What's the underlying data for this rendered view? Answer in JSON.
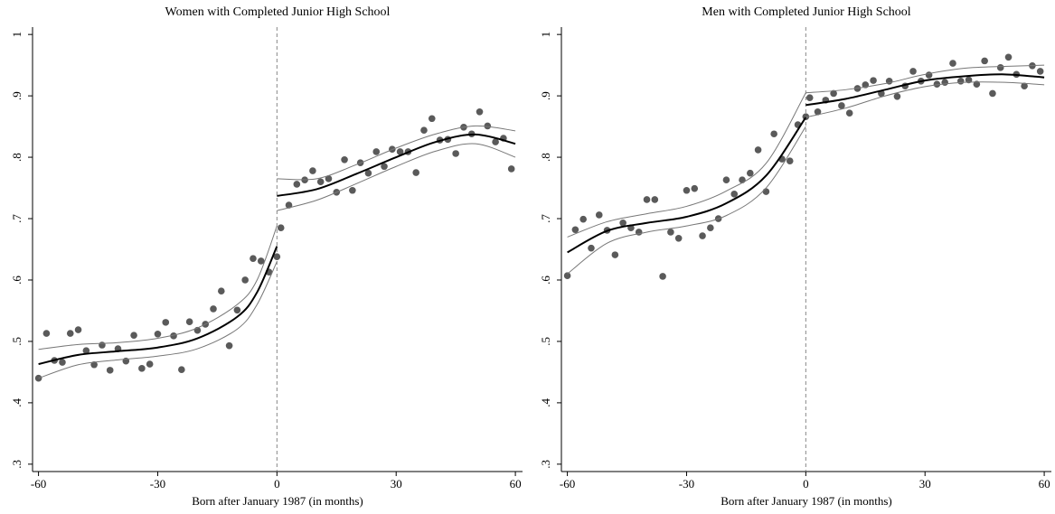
{
  "chart_data": [
    {
      "type": "scatter",
      "title": "Women with Completed Junior High School",
      "xlabel": "Born after January 1987 (in months)",
      "xlim": [
        -61.5,
        61.8
      ],
      "ylim": [
        0.288,
        1.012
      ],
      "xticks": [
        -60,
        -30,
        0,
        30,
        60
      ],
      "yticks": [
        {
          "value": 0.3,
          "label": ".3"
        },
        {
          "value": 0.4,
          "label": ".4"
        },
        {
          "value": 0.5,
          "label": ".5"
        },
        {
          "value": 0.6,
          "label": ".6"
        },
        {
          "value": 0.7,
          "label": ".7"
        },
        {
          "value": 0.8,
          "label": ".8"
        },
        {
          "value": 0.9,
          "label": ".9"
        },
        {
          "value": 1,
          "label": "1"
        }
      ],
      "cutoff": 0,
      "series": [
        {
          "kind": "points",
          "color": "#5a5a5a",
          "x": [
            -60,
            -58,
            -56,
            -54,
            -52,
            -50,
            -48,
            -46,
            -44,
            -42,
            -40,
            -38,
            -36,
            -34,
            -32,
            -30,
            -28,
            -26,
            -24,
            -22,
            -20,
            -18,
            -16,
            -14,
            -12,
            -10,
            -8,
            -6,
            -4,
            -2,
            0
          ],
          "values": [
            0.44,
            0.513,
            0.469,
            0.466,
            0.513,
            0.519,
            0.485,
            0.462,
            0.494,
            0.453,
            0.488,
            0.468,
            0.51,
            0.456,
            0.463,
            0.512,
            0.531,
            0.509,
            0.454,
            0.532,
            0.518,
            0.528,
            0.553,
            0.582,
            0.493,
            0.551,
            0.6,
            0.635,
            0.631,
            0.613,
            0.638
          ]
        },
        {
          "kind": "points",
          "color": "#5a5a5a",
          "x": [
            1,
            3,
            5,
            7,
            9,
            11,
            13,
            15,
            17,
            19,
            21,
            23,
            25,
            27,
            29,
            31,
            33,
            35,
            37,
            39,
            41,
            43,
            45,
            47,
            49,
            51,
            53,
            55,
            57,
            59
          ],
          "values": [
            0.685,
            0.722,
            0.756,
            0.763,
            0.778,
            0.76,
            0.765,
            0.743,
            0.796,
            0.746,
            0.791,
            0.774,
            0.809,
            0.785,
            0.813,
            0.809,
            0.809,
            0.775,
            0.844,
            0.863,
            0.828,
            0.829,
            0.806,
            0.849,
            0.838,
            0.874,
            0.851,
            0.825,
            0.831,
            0.781
          ]
        },
        {
          "kind": "line",
          "color": "#000000",
          "width": 2,
          "x": [
            -60,
            -50,
            -40,
            -30,
            -20,
            -10,
            -5,
            0
          ],
          "values": [
            0.463,
            0.478,
            0.484,
            0.49,
            0.505,
            0.54,
            0.58,
            0.655
          ]
        },
        {
          "kind": "line",
          "color": "#777777",
          "width": 1,
          "x": [
            -60,
            -50,
            -40,
            -30,
            -20,
            -10,
            -5,
            0
          ],
          "values": [
            0.487,
            0.495,
            0.498,
            0.505,
            0.522,
            0.56,
            0.6,
            0.688
          ]
        },
        {
          "kind": "line",
          "color": "#777777",
          "width": 1,
          "x": [
            -60,
            -50,
            -40,
            -30,
            -20,
            -10,
            -5,
            0
          ],
          "values": [
            0.44,
            0.462,
            0.47,
            0.476,
            0.488,
            0.52,
            0.56,
            0.63
          ]
        },
        {
          "kind": "line",
          "color": "#000000",
          "width": 2,
          "x": [
            0,
            10,
            20,
            30,
            40,
            50,
            60
          ],
          "values": [
            0.737,
            0.748,
            0.773,
            0.8,
            0.825,
            0.837,
            0.822
          ]
        },
        {
          "kind": "line",
          "color": "#777777",
          "width": 1,
          "x": [
            0,
            10,
            20,
            30,
            40,
            50,
            60
          ],
          "values": [
            0.765,
            0.765,
            0.788,
            0.815,
            0.838,
            0.851,
            0.843
          ]
        },
        {
          "kind": "line",
          "color": "#777777",
          "width": 1,
          "x": [
            0,
            10,
            20,
            30,
            40,
            50,
            60
          ],
          "values": [
            0.713,
            0.73,
            0.757,
            0.785,
            0.81,
            0.822,
            0.8
          ]
        }
      ]
    },
    {
      "type": "scatter",
      "title": "Men with Completed Junior High School",
      "xlabel": "Born after January 1987 (in months)",
      "xlim": [
        -61.5,
        61.8
      ],
      "ylim": [
        0.288,
        1.012
      ],
      "xticks": [
        -60,
        -30,
        0,
        30,
        60
      ],
      "yticks": [
        {
          "value": 0.3,
          "label": ".3"
        },
        {
          "value": 0.4,
          "label": ".4"
        },
        {
          "value": 0.5,
          "label": ".5"
        },
        {
          "value": 0.6,
          "label": ".6"
        },
        {
          "value": 0.7,
          "label": ".7"
        },
        {
          "value": 0.8,
          "label": ".8"
        },
        {
          "value": 0.9,
          "label": ".9"
        },
        {
          "value": 1,
          "label": "1"
        }
      ],
      "cutoff": 0,
      "series": [
        {
          "kind": "points",
          "color": "#5a5a5a",
          "x": [
            -60,
            -58,
            -56,
            -54,
            -52,
            -50,
            -48,
            -46,
            -44,
            -42,
            -40,
            -38,
            -36,
            -34,
            -32,
            -30,
            -28,
            -26,
            -24,
            -22,
            -20,
            -18,
            -16,
            -14,
            -12,
            -10,
            -8,
            -6,
            -4,
            -2,
            0
          ],
          "values": [
            0.607,
            0.682,
            0.699,
            0.652,
            0.706,
            0.681,
            0.641,
            0.693,
            0.685,
            0.678,
            0.731,
            0.731,
            0.606,
            0.678,
            0.668,
            0.746,
            0.749,
            0.672,
            0.685,
            0.7,
            0.763,
            0.74,
            0.763,
            0.774,
            0.812,
            0.744,
            0.838,
            0.797,
            0.794,
            0.853,
            0.866
          ]
        },
        {
          "kind": "points",
          "color": "#5a5a5a",
          "x": [
            1,
            3,
            5,
            7,
            9,
            11,
            13,
            15,
            17,
            19,
            21,
            23,
            25,
            27,
            29,
            31,
            33,
            35,
            37,
            39,
            41,
            43,
            45,
            47,
            49,
            51,
            53,
            55,
            57,
            59
          ],
          "values": [
            0.897,
            0.874,
            0.893,
            0.904,
            0.884,
            0.872,
            0.912,
            0.918,
            0.925,
            0.904,
            0.924,
            0.899,
            0.916,
            0.94,
            0.924,
            0.934,
            0.919,
            0.922,
            0.953,
            0.924,
            0.926,
            0.919,
            0.957,
            0.904,
            0.946,
            0.963,
            0.935,
            0.916,
            0.949,
            0.94
          ]
        },
        {
          "kind": "line",
          "color": "#000000",
          "width": 2,
          "x": [
            -60,
            -50,
            -40,
            -30,
            -20,
            -10,
            0
          ],
          "values": [
            0.645,
            0.68,
            0.693,
            0.703,
            0.725,
            0.77,
            0.865
          ]
        },
        {
          "kind": "line",
          "color": "#777777",
          "width": 1,
          "x": [
            -60,
            -50,
            -40,
            -30,
            -20,
            -10,
            0
          ],
          "values": [
            0.67,
            0.695,
            0.708,
            0.72,
            0.745,
            0.79,
            0.905
          ]
        },
        {
          "kind": "line",
          "color": "#777777",
          "width": 1,
          "x": [
            -60,
            -50,
            -40,
            -30,
            -20,
            -10,
            0
          ],
          "values": [
            0.61,
            0.66,
            0.678,
            0.688,
            0.705,
            0.75,
            0.85
          ]
        },
        {
          "kind": "line",
          "color": "#000000",
          "width": 2,
          "x": [
            0,
            10,
            20,
            30,
            40,
            50,
            60
          ],
          "values": [
            0.885,
            0.895,
            0.91,
            0.925,
            0.932,
            0.935,
            0.93
          ]
        },
        {
          "kind": "line",
          "color": "#777777",
          "width": 1,
          "x": [
            0,
            10,
            20,
            30,
            40,
            50,
            60
          ],
          "values": [
            0.905,
            0.91,
            0.92,
            0.935,
            0.945,
            0.948,
            0.95
          ]
        },
        {
          "kind": "line",
          "color": "#777777",
          "width": 1,
          "x": [
            0,
            10,
            20,
            30,
            40,
            50,
            60
          ],
          "values": [
            0.865,
            0.88,
            0.9,
            0.915,
            0.922,
            0.922,
            0.918
          ]
        }
      ]
    }
  ]
}
